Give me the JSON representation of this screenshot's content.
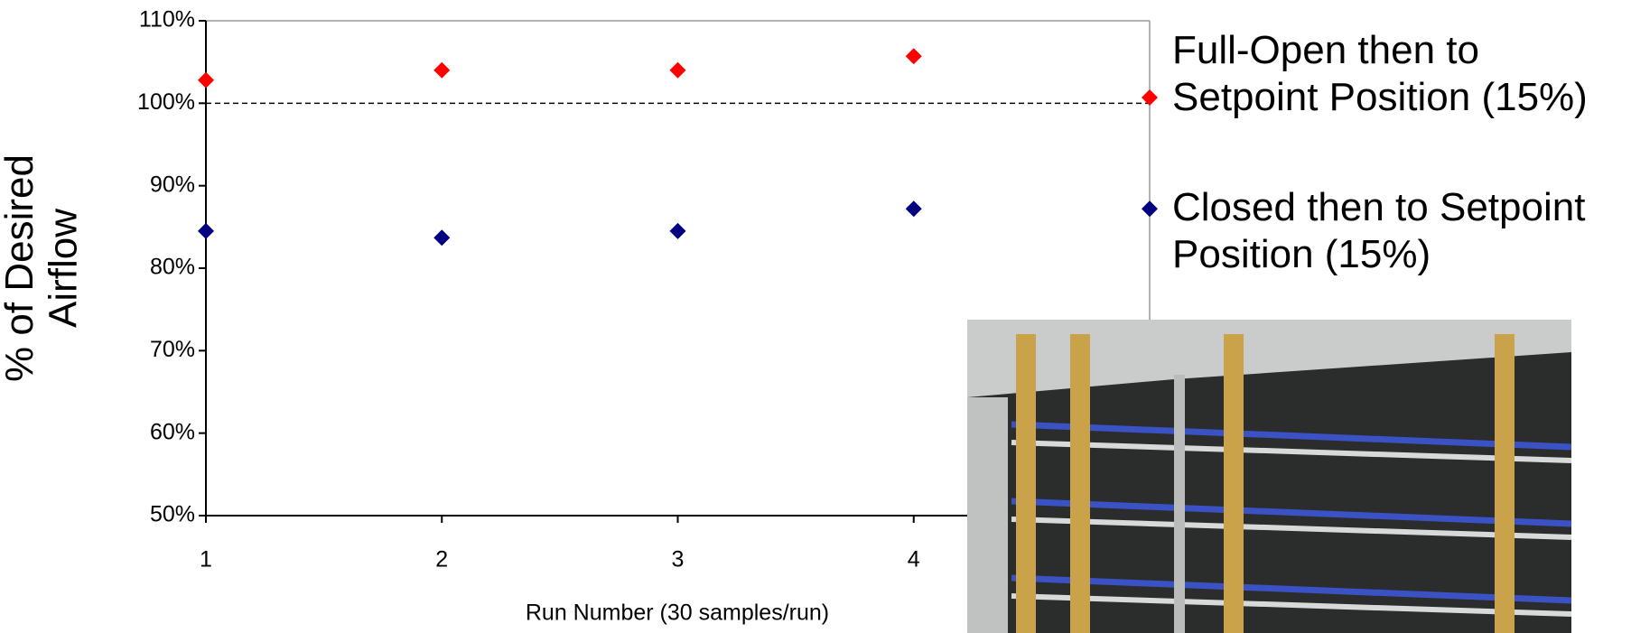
{
  "chart_data": {
    "type": "scatter",
    "x_label": "Run Number (30 samples/run)",
    "y_label": "% of Desired Airflow",
    "x": [
      1,
      2,
      3,
      4,
      5
    ],
    "xlim": [
      1,
      5
    ],
    "xticks": [
      1,
      2,
      3,
      4
    ],
    "ylim": [
      50,
      110
    ],
    "yticks": [
      {
        "value": 50,
        "label": "50%"
      },
      {
        "value": 60,
        "label": "60%"
      },
      {
        "value": 70,
        "label": "70%"
      },
      {
        "value": 80,
        "label": "80%"
      },
      {
        "value": 90,
        "label": "90%"
      },
      {
        "value": 100,
        "label": "100%"
      },
      {
        "value": 110,
        "label": "110%"
      }
    ],
    "reference_line": 100,
    "series": [
      {
        "name": "Full-Open then to Setpoint Position (15%)",
        "color": "#ff0000",
        "values": [
          102.8,
          104,
          104,
          105.7,
          100.7
        ]
      },
      {
        "name": "Closed then to Setpoint Position (15%)",
        "color": "#000080",
        "values": [
          84.5,
          83.7,
          84.5,
          87.2,
          87.2
        ]
      }
    ]
  }
}
